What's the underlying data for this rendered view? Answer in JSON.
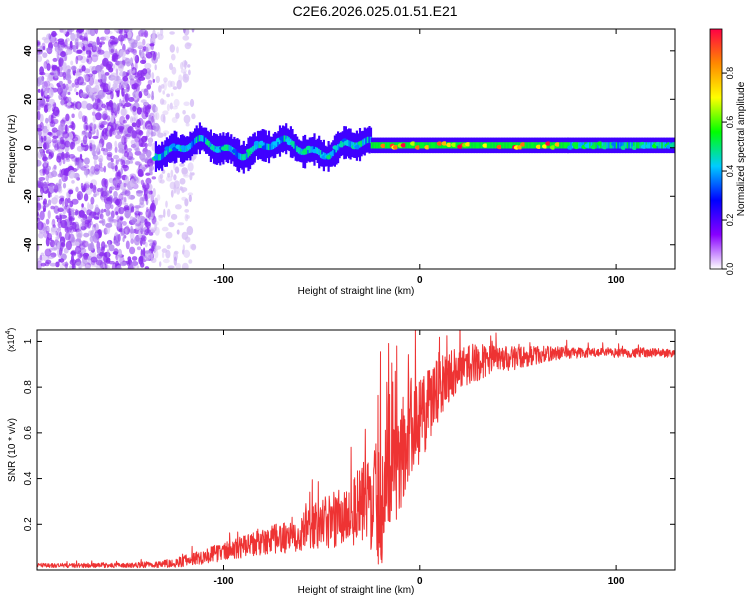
{
  "figure_title": "C2E6.2026.025.01.51.E21",
  "colors": {
    "background": "#ffffff",
    "snr_line": "#ee3333",
    "axis": "#000000"
  },
  "chart_data": [
    {
      "type": "heatmap",
      "title": "C2E6.2026.025.01.51.E21",
      "xlabel": "Height of straight line (km)",
      "ylabel": "Frequency (Hz)",
      "xlim": [
        -195,
        130
      ],
      "ylim": [
        -50,
        49
      ],
      "xticks": [
        -100,
        0,
        100
      ],
      "yticks": [
        -40,
        -20,
        0,
        20,
        40
      ],
      "colorbar": {
        "label": "Normalized spectral amplitude",
        "range": [
          0,
          0.98
        ],
        "ticks": [
          0,
          0.2,
          0.4,
          0.6,
          0.8
        ],
        "colormap": [
          "#ffffff",
          "#8800ff",
          "#0000ff",
          "#00ccff",
          "#00ff00",
          "#ffff00",
          "#ff8800",
          "#ff0044"
        ]
      },
      "regions": [
        {
          "name": "broadband noise",
          "x_range": [
            -195,
            -135
          ],
          "freq_range": [
            -50,
            49
          ],
          "amplitude": 0.15
        },
        {
          "name": "sparse noise",
          "x_range": [
            -135,
            -115
          ],
          "freq_range": [
            -50,
            49
          ],
          "amplitude": 0.05
        },
        {
          "name": "wandering tone",
          "x_range": [
            -135,
            -25
          ],
          "center_freq_hz": 0,
          "amplitude": 0.45
        },
        {
          "name": "stable tone",
          "x_range": [
            -25,
            75
          ],
          "center_freq_hz": 1,
          "amplitude": 0.9
        },
        {
          "name": "stable tone tail",
          "x_range": [
            75,
            130
          ],
          "center_freq_hz": 1,
          "amplitude": 0.5
        }
      ]
    },
    {
      "type": "line",
      "xlabel": "Height of straight line (km)",
      "ylabel": "SNR (10 * v/v)",
      "multiplier": "(x10^4)",
      "multiplier_base": "(x10",
      "multiplier_exp": "4",
      "multiplier_close": ")",
      "xlim": [
        -195,
        130
      ],
      "ylim": [
        0,
        1.05
      ],
      "xticks": [
        -100,
        0,
        100
      ],
      "yticks": [
        0.2,
        0.4,
        0.6,
        0.8,
        1
      ],
      "series": [
        {
          "name": "SNR",
          "x": [
            -195,
            -170,
            -150,
            -135,
            -125,
            -115,
            -100,
            -90,
            -80,
            -70,
            -60,
            -50,
            -40,
            -30,
            -25,
            -20,
            -15,
            -10,
            -5,
            0,
            5,
            10,
            15,
            20,
            25,
            30,
            40,
            50,
            60,
            70,
            80,
            90,
            100,
            110,
            120,
            130
          ],
          "y": [
            0.02,
            0.02,
            0.02,
            0.025,
            0.03,
            0.05,
            0.08,
            0.1,
            0.12,
            0.14,
            0.17,
            0.2,
            0.23,
            0.28,
            0.31,
            0.3,
            0.5,
            0.48,
            0.62,
            0.66,
            0.7,
            0.8,
            0.86,
            0.88,
            0.9,
            0.91,
            0.92,
            0.93,
            0.94,
            0.95,
            0.95,
            0.95,
            0.95,
            0.95,
            0.95,
            0.95
          ],
          "noise": [
            0.01,
            0.01,
            0.01,
            0.015,
            0.02,
            0.03,
            0.04,
            0.05,
            0.06,
            0.07,
            0.09,
            0.11,
            0.14,
            0.18,
            0.22,
            0.3,
            0.3,
            0.25,
            0.22,
            0.2,
            0.18,
            0.16,
            0.12,
            0.1,
            0.09,
            0.08,
            0.06,
            0.05,
            0.04,
            0.03,
            0.025,
            0.02,
            0.02,
            0.02,
            0.02,
            0.02
          ]
        }
      ]
    }
  ]
}
